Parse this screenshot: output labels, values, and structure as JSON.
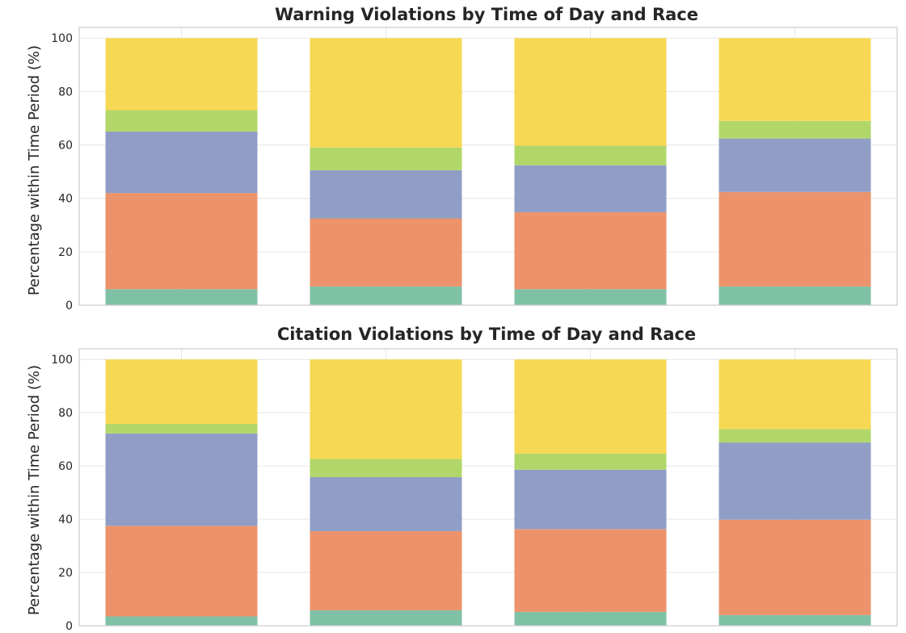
{
  "chart_data": [
    {
      "type": "bar",
      "stacked": true,
      "title": "Warning Violations by Time of Day and Race",
      "xlabel": "",
      "ylabel": "Percentage within Time Period (%)",
      "ylim": [
        0,
        104
      ],
      "yticks": [
        0,
        20,
        40,
        60,
        80,
        100
      ],
      "grid": true,
      "categories": [
        "",
        "",
        "",
        ""
      ],
      "series": [
        {
          "color": "#7fc1a5",
          "values": [
            6.0,
            7.0,
            6.0,
            7.0
          ]
        },
        {
          "color": "#ec936b",
          "values": [
            36.0,
            25.5,
            28.8,
            35.4
          ]
        },
        {
          "color": "#909ec6",
          "values": [
            23.0,
            18.0,
            17.6,
            20.0
          ]
        },
        {
          "color": "#b1d76a",
          "values": [
            8.0,
            8.5,
            7.3,
            6.6
          ]
        },
        {
          "color": "#f6d854",
          "values": [
            27.0,
            41.0,
            40.3,
            31.0
          ]
        }
      ]
    },
    {
      "type": "bar",
      "stacked": true,
      "title": "Citation Violations by Time of Day and Race",
      "xlabel": "",
      "ylabel": "Percentage within Time Period (%)",
      "ylim": [
        0,
        104
      ],
      "yticks": [
        0,
        20,
        40,
        60,
        80,
        100
      ],
      "grid": true,
      "categories": [
        "",
        "",
        "",
        ""
      ],
      "series": [
        {
          "color": "#7fc1a5",
          "values": [
            3.5,
            5.8,
            5.2,
            4.0
          ]
        },
        {
          "color": "#ec936b",
          "values": [
            34.0,
            29.7,
            31.1,
            35.8
          ]
        },
        {
          "color": "#909ec6",
          "values": [
            34.7,
            20.3,
            22.3,
            29.0
          ]
        },
        {
          "color": "#b1d76a",
          "values": [
            3.6,
            6.8,
            6.0,
            5.0
          ]
        },
        {
          "color": "#f6d854",
          "values": [
            24.2,
            37.4,
            35.4,
            26.2
          ]
        }
      ]
    }
  ]
}
